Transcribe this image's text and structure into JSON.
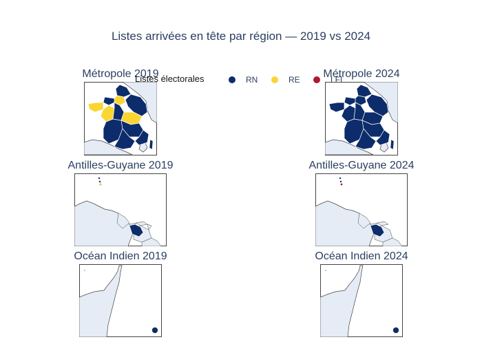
{
  "title": "Listes arrivées en tête par région — 2019 vs 2024",
  "legend": {
    "title": "Listes électorales",
    "items": [
      {
        "label": "RN",
        "color": "#0d2c6b"
      },
      {
        "label": "RE",
        "color": "#fbd531"
      },
      {
        "label": "LFI",
        "color": "#b0182d"
      }
    ]
  },
  "maps": {
    "metro_2019": {
      "label": "Métropole 2019"
    },
    "metro_2024": {
      "label": "Métropole 2024"
    },
    "antilles_2019": {
      "label": "Antilles-Guyane 2019"
    },
    "antilles_2024": {
      "label": "Antilles-Guyane 2024"
    },
    "ocean_2019": {
      "label": "Océan Indien 2019"
    },
    "ocean_2024": {
      "label": "Océan Indien 2024"
    }
  },
  "colors": {
    "land": "#e5ecf6",
    "rn": "#0d2c6b",
    "re": "#fbd531",
    "lfi": "#b0182d"
  }
}
